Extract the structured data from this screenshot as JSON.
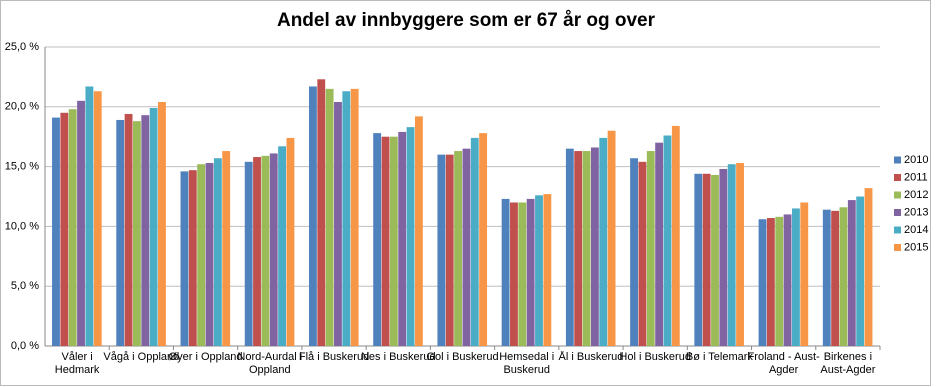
{
  "chart_data": {
    "type": "bar",
    "title": "Andel av innbyggere som er 67 år og over",
    "categories": [
      "Våler i Hedmark",
      "Vågå i Oppland",
      "Øyer i Oppland",
      "Nord-Aurdal i Oppland",
      "Flå i Buskerud",
      "Nes i Buskerud",
      "Gol i Buskerud",
      "Hemsedal i Buskerud",
      "Ål i Buskerud",
      "Hol i Buskerud",
      "Bø i Telemark",
      "Froland - Aust-Agder",
      "Birkenes i Aust-Agder"
    ],
    "series": [
      {
        "name": "2010",
        "color": "#4f81bd",
        "values": [
          19.1,
          18.9,
          14.6,
          15.4,
          21.7,
          17.8,
          16.0,
          12.3,
          16.5,
          15.7,
          14.4,
          10.6,
          11.4
        ]
      },
      {
        "name": "2011",
        "color": "#c0504d",
        "values": [
          19.5,
          19.4,
          14.7,
          15.8,
          22.3,
          17.5,
          16.0,
          12.0,
          16.3,
          15.4,
          14.4,
          10.7,
          11.3
        ]
      },
      {
        "name": "2012",
        "color": "#9bbb59",
        "values": [
          19.8,
          18.8,
          15.2,
          15.9,
          21.5,
          17.5,
          16.3,
          12.0,
          16.3,
          16.3,
          14.3,
          10.8,
          11.6
        ]
      },
      {
        "name": "2013",
        "color": "#8064a2",
        "values": [
          20.5,
          19.3,
          15.3,
          16.1,
          20.4,
          17.9,
          16.5,
          12.3,
          16.6,
          17.0,
          14.8,
          11.0,
          12.2
        ]
      },
      {
        "name": "2014",
        "color": "#4bacc6",
        "values": [
          21.7,
          19.9,
          15.7,
          16.7,
          21.3,
          18.3,
          17.4,
          12.6,
          17.4,
          17.6,
          15.2,
          11.5,
          12.5
        ]
      },
      {
        "name": "2015",
        "color": "#f79646",
        "values": [
          21.3,
          20.4,
          16.3,
          17.4,
          21.5,
          19.2,
          17.8,
          12.7,
          18.0,
          18.4,
          15.3,
          12.0,
          13.2
        ]
      }
    ],
    "ylim": [
      0,
      25
    ],
    "yticks": [
      {
        "value": 0,
        "label": "0,0 %"
      },
      {
        "value": 5,
        "label": "5,0 %"
      },
      {
        "value": 10,
        "label": "10,0 %"
      },
      {
        "value": 15,
        "label": "15,0 %"
      },
      {
        "value": 20,
        "label": "20,0 %"
      },
      {
        "value": 25,
        "label": "25,0 %"
      }
    ],
    "grid": true,
    "legend": "right"
  }
}
